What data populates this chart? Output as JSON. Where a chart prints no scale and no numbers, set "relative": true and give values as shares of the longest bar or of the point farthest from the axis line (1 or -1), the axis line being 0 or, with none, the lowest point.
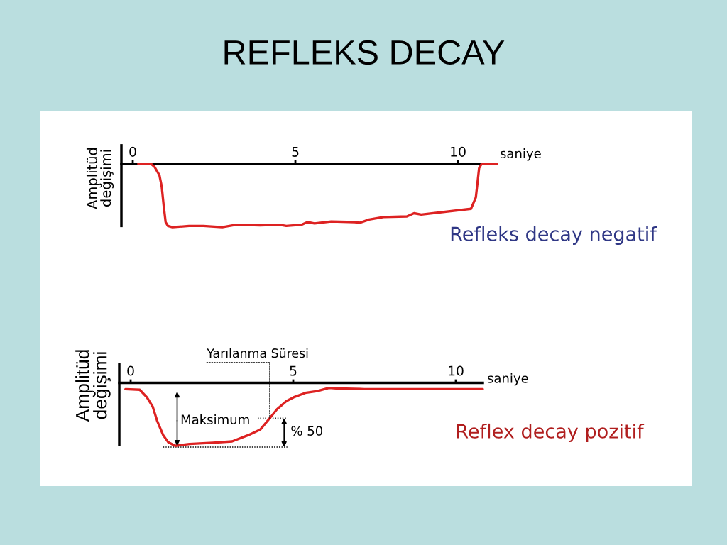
{
  "chart_data": [
    {
      "type": "line",
      "title": "REFLEKS DECAY",
      "subtitle": "Refleks decay negatif",
      "xlabel": "saniye",
      "ylabel": "Amplitüd\ndeğişimi",
      "relative": true,
      "x": [
        0.17,
        0.56,
        0.67,
        0.82,
        0.89,
        0.95,
        1.01,
        1.08,
        1.22,
        1.73,
        2.17,
        2.75,
        3.19,
        3.92,
        4.5,
        4.72,
        5.2,
        5.37,
        5.59,
        6.1,
        6.83,
        6.98,
        7.27,
        7.71,
        8.43,
        8.65,
        8.87,
        10.4,
        10.55,
        10.65,
        10.73,
        10.87,
        11.2
      ],
      "series": [
        {
          "color": "#dd2222",
          "values": [
            0,
            0,
            -0.05,
            -0.18,
            -0.36,
            -0.66,
            -0.92,
            -0.98,
            -1,
            -0.98,
            -0.98,
            -1,
            -0.96,
            -0.97,
            -0.96,
            -0.98,
            -0.96,
            -0.92,
            -0.94,
            -0.91,
            -0.92,
            -0.93,
            -0.88,
            -0.84,
            -0.83,
            -0.78,
            -0.8,
            -0.71,
            -0.53,
            -0.07,
            0,
            0,
            0
          ]
        }
      ],
      "xlim": [
        -0.35,
        11.2
      ],
      "xticks": [
        0,
        5,
        10
      ],
      "line_style": "solid"
    },
    {
      "type": "line",
      "subtitle": "Reflex decay pozitif",
      "xlabel": "saniye",
      "ylabel": "Amplitüd\ndeğişimi",
      "relative": true,
      "x": [
        -0.16,
        0.28,
        0.5,
        0.68,
        0.82,
        1.0,
        1.15,
        1.37,
        1.81,
        2.53,
        3.12,
        3.62,
        3.99,
        4.28,
        4.5,
        4.79,
        5.01,
        5.37,
        5.74,
        6.1,
        6.39,
        7.19,
        10.83
      ],
      "series": [
        {
          "color": "#dd2222",
          "values": [
            -0.1,
            -0.11,
            -0.23,
            -0.38,
            -0.61,
            -0.83,
            -0.94,
            -1,
            -0.97,
            -0.95,
            -0.93,
            -0.83,
            -0.74,
            -0.56,
            -0.42,
            -0.29,
            -0.23,
            -0.16,
            -0.13,
            -0.08,
            -0.09,
            -0.1,
            -0.1
          ]
        }
      ],
      "xlim": [
        -0.35,
        10.83
      ],
      "xticks": [
        0,
        5,
        10
      ],
      "line_style": "solid",
      "annotations": [
        {
          "text": "Yarılanma Süresi",
          "x": 4.28,
          "y": -0.56
        },
        {
          "text": "Maksimum",
          "x": 1.43,
          "y": -1
        },
        "% 50"
      ]
    }
  ]
}
